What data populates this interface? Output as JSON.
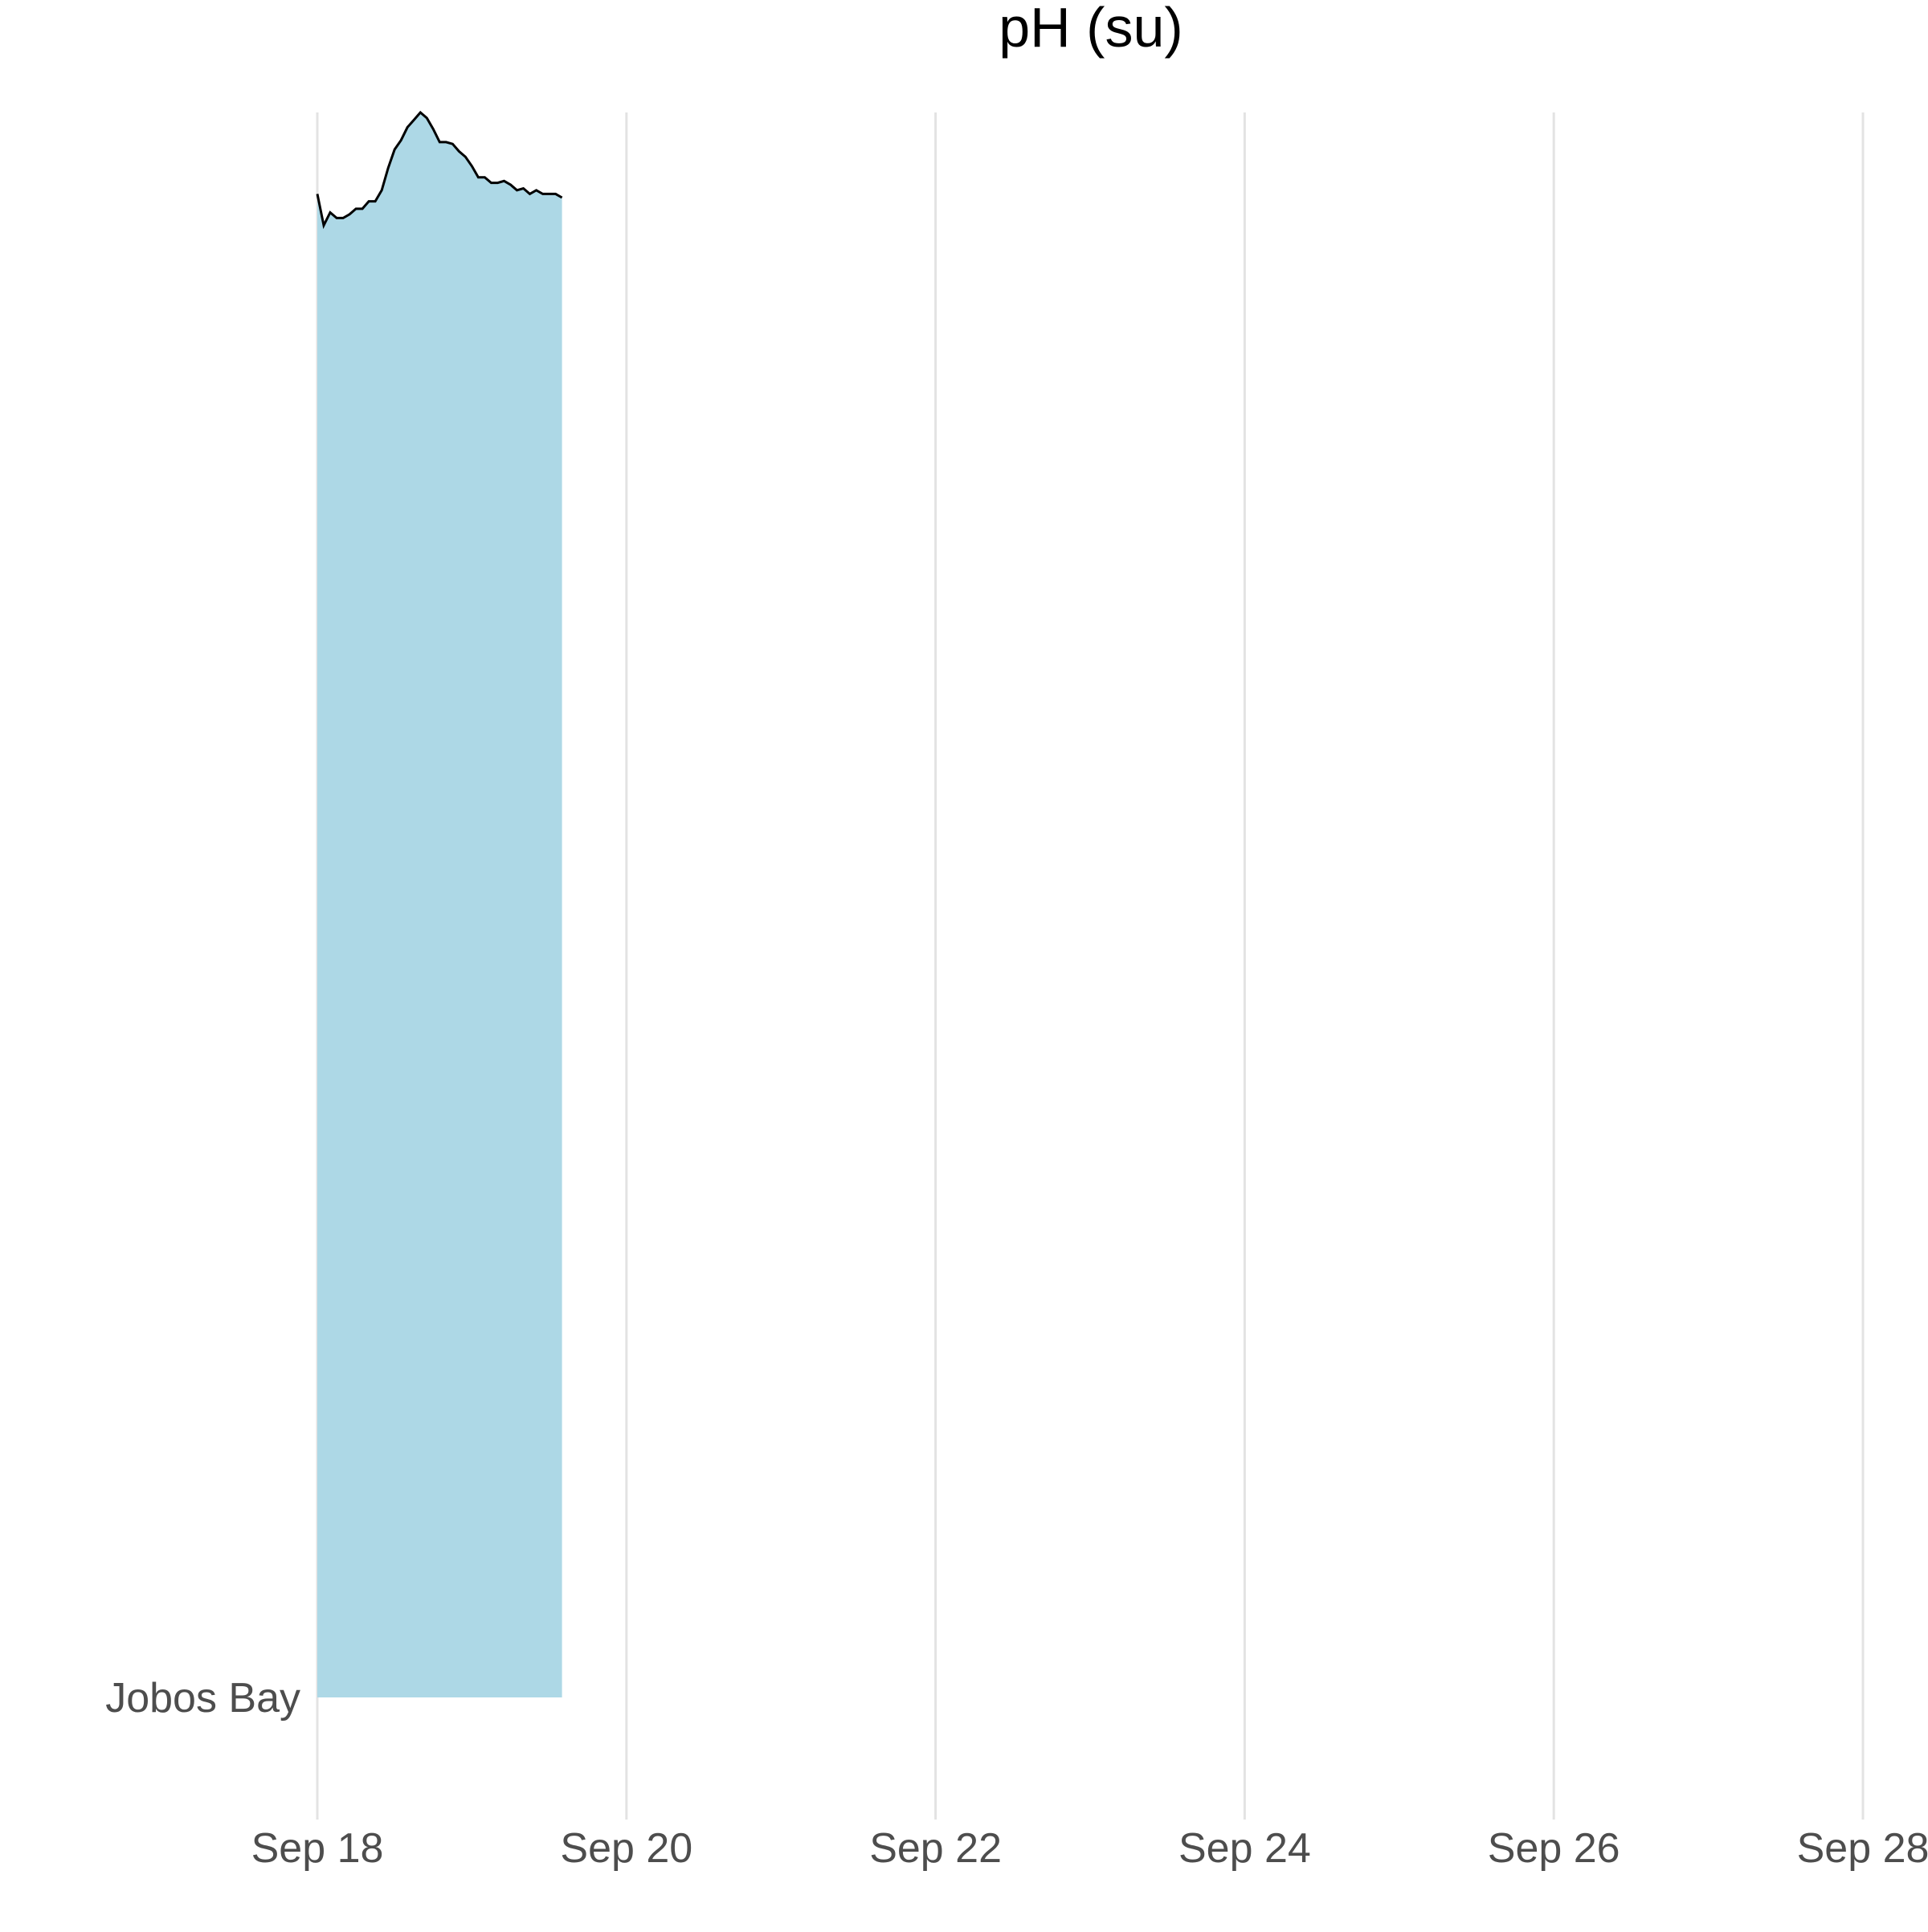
{
  "chart_data": {
    "type": "area",
    "title": "pH (su)",
    "xlabel": "",
    "ylabel": "",
    "x_ticks": [
      "Sep 18",
      "Sep 20",
      "Sep 22",
      "Sep 24",
      "Sep 26",
      "Sep 28"
    ],
    "xlim": [
      "2023-09-18",
      "2023-09-28"
    ],
    "categories": [
      "Jobos Bay"
    ],
    "grid": "vertical",
    "legend": "none",
    "fill_color": "#ADD8E6",
    "line_color": "#000000",
    "series": [
      {
        "name": "Jobos Bay",
        "x": [
          "2023-09-18 00:00",
          "2023-09-18 01:00",
          "2023-09-18 02:00",
          "2023-09-18 03:00",
          "2023-09-18 04:00",
          "2023-09-18 05:00",
          "2023-09-18 06:00",
          "2023-09-18 07:00",
          "2023-09-18 08:00",
          "2023-09-18 09:00",
          "2023-09-18 10:00",
          "2023-09-18 11:00",
          "2023-09-18 12:00",
          "2023-09-18 13:00",
          "2023-09-18 14:00",
          "2023-09-18 15:00",
          "2023-09-18 16:00",
          "2023-09-18 17:00",
          "2023-09-18 18:00",
          "2023-09-18 19:00",
          "2023-09-18 20:00",
          "2023-09-18 21:00",
          "2023-09-18 22:00",
          "2023-09-18 23:00",
          "2023-09-19 00:00",
          "2023-09-19 01:00",
          "2023-09-19 02:00",
          "2023-09-19 03:00",
          "2023-09-19 04:00",
          "2023-09-19 05:00",
          "2023-09-19 06:00",
          "2023-09-19 07:00",
          "2023-09-19 08:00",
          "2023-09-19 09:00",
          "2023-09-19 10:00",
          "2023-09-19 11:00",
          "2023-09-19 12:00",
          "2023-09-19 13:00",
          "2023-09-19 14:00"
        ],
        "values": [
          8.12,
          7.95,
          8.02,
          7.99,
          7.99,
          8.01,
          8.04,
          8.04,
          8.08,
          8.08,
          8.14,
          8.26,
          8.36,
          8.41,
          8.48,
          8.52,
          8.56,
          8.53,
          8.47,
          8.4,
          8.4,
          8.39,
          8.35,
          8.32,
          8.27,
          8.21,
          8.21,
          8.18,
          8.18,
          8.19,
          8.17,
          8.14,
          8.15,
          8.12,
          8.14,
          8.12,
          8.12,
          8.12,
          8.1
        ]
      }
    ]
  }
}
